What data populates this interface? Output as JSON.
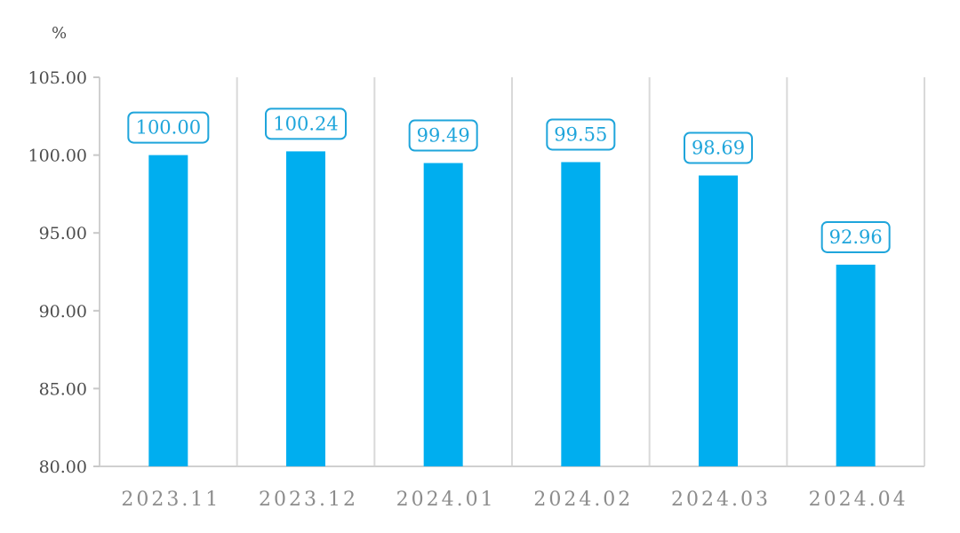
{
  "chart_data": {
    "type": "bar",
    "ylabel": "%",
    "ylim": [
      80,
      105
    ],
    "yticks": [
      "80.00",
      "85.00",
      "90.00",
      "95.00",
      "100.00",
      "105.00"
    ],
    "categories": [
      "2023.11",
      "2023.12",
      "2024.01",
      "2024.02",
      "2024.03",
      "2024.04"
    ],
    "values": [
      100.0,
      100.24,
      99.49,
      99.55,
      98.69,
      92.96
    ],
    "data_labels": [
      "100.00",
      "100.24",
      "99.49",
      "99.55",
      "98.69",
      "92.96"
    ],
    "bar_color": "#00aeef",
    "label_color": "#1fa5db",
    "grid": "vertical",
    "legend": "none"
  }
}
